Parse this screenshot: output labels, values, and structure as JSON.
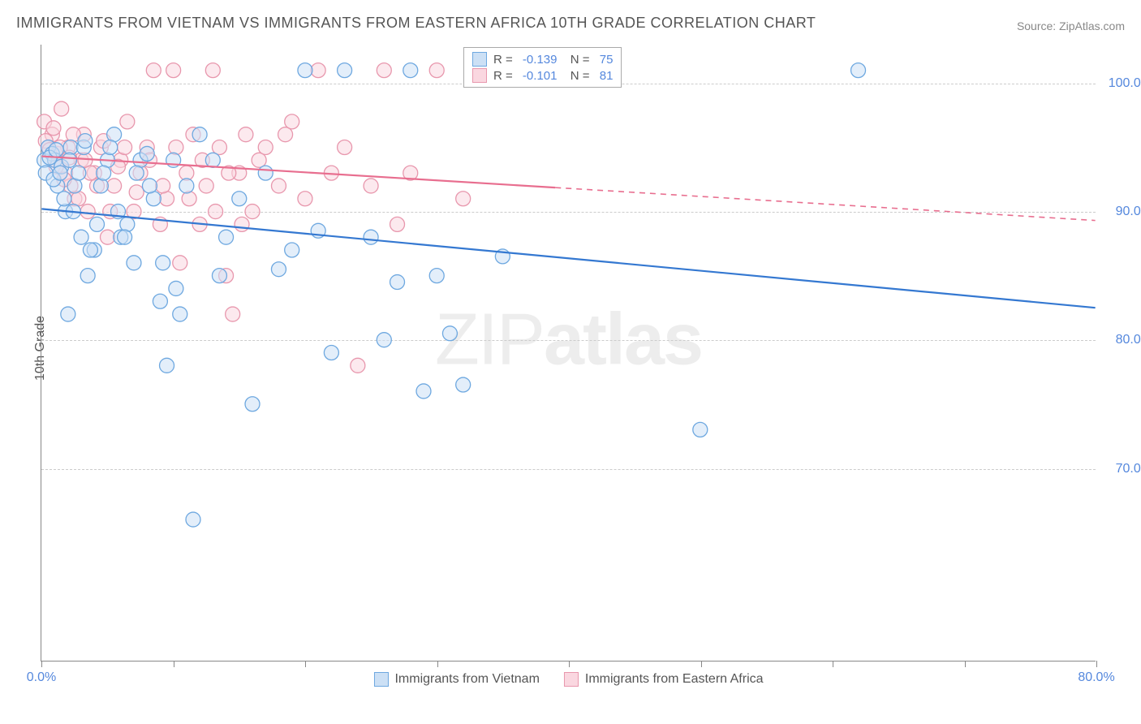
{
  "title": "IMMIGRANTS FROM VIETNAM VS IMMIGRANTS FROM EASTERN AFRICA 10TH GRADE CORRELATION CHART",
  "source_prefix": "Source: ",
  "source_link": "ZipAtlas.com",
  "ylabel": "10th Grade",
  "watermark_light": "ZIP",
  "watermark_bold": "atlas",
  "chart": {
    "type": "scatter",
    "xlim": [
      0,
      80
    ],
    "ylim": [
      55,
      103
    ],
    "yticks": [
      70,
      80,
      90,
      100
    ],
    "ytick_labels": [
      "70.0%",
      "80.0%",
      "90.0%",
      "100.0%"
    ],
    "xticks": [
      0,
      10,
      20,
      30,
      40,
      50,
      60,
      70,
      80
    ],
    "xtick_labels": [
      "0.0%",
      "",
      "",
      "",
      "",
      "",
      "",
      "",
      "80.0%"
    ],
    "grid_color": "#cccccc",
    "background_color": "#ffffff",
    "axis_color": "#888888",
    "marker_radius": 9,
    "marker_stroke_width": 1.3,
    "line_width": 2.2,
    "series": [
      {
        "name": "Immigrants from Vietnam",
        "fill": "#cce0f5",
        "stroke": "#6ea8e0",
        "line_color": "#3478d1",
        "R": "-0.139",
        "N": "75",
        "trend": {
          "x1": 0,
          "y1": 90.2,
          "x2": 80,
          "y2": 82.5,
          "dash_after_x": null
        },
        "points": [
          [
            0.2,
            94
          ],
          [
            0.5,
            95
          ],
          [
            0.8,
            94.5
          ],
          [
            1.0,
            94
          ],
          [
            1.2,
            92
          ],
          [
            1.5,
            93.5
          ],
          [
            1.8,
            90
          ],
          [
            2,
            82
          ],
          [
            2.2,
            95
          ],
          [
            2.5,
            92
          ],
          [
            3,
            88
          ],
          [
            3.2,
            95
          ],
          [
            3.5,
            85
          ],
          [
            4,
            87
          ],
          [
            4.5,
            92
          ],
          [
            5,
            94
          ],
          [
            5.5,
            96
          ],
          [
            6,
            88
          ],
          [
            6.5,
            89
          ],
          [
            7,
            86
          ],
          [
            7.5,
            94
          ],
          [
            8,
            94.5
          ],
          [
            8.5,
            91
          ],
          [
            9,
            83
          ],
          [
            9.5,
            78
          ],
          [
            10,
            94
          ],
          [
            10.5,
            82
          ],
          [
            11,
            92
          ],
          [
            11.5,
            66
          ],
          [
            12,
            96
          ],
          [
            13,
            94
          ],
          [
            13.5,
            85
          ],
          [
            14,
            88
          ],
          [
            15,
            91
          ],
          [
            16,
            75
          ],
          [
            17,
            93
          ],
          [
            18,
            85.5
          ],
          [
            19,
            87
          ],
          [
            20,
            101
          ],
          [
            21,
            88.5
          ],
          [
            22,
            79
          ],
          [
            23,
            101
          ],
          [
            25,
            88
          ],
          [
            26,
            80
          ],
          [
            27,
            84.5
          ],
          [
            28,
            101
          ],
          [
            29,
            76
          ],
          [
            30,
            85
          ],
          [
            31,
            80.5
          ],
          [
            32,
            76.5
          ],
          [
            33,
            101
          ],
          [
            35,
            86.5
          ],
          [
            40,
            101
          ],
          [
            50,
            73
          ],
          [
            62,
            101
          ],
          [
            0.3,
            93
          ],
          [
            0.6,
            94.2
          ],
          [
            0.9,
            92.5
          ],
          [
            1.1,
            94.8
          ],
          [
            1.4,
            93
          ],
          [
            1.7,
            91
          ],
          [
            2.1,
            94
          ],
          [
            2.4,
            90
          ],
          [
            2.8,
            93
          ],
          [
            3.3,
            95.5
          ],
          [
            3.7,
            87
          ],
          [
            4.2,
            89
          ],
          [
            4.7,
            93
          ],
          [
            5.2,
            95
          ],
          [
            5.8,
            90
          ],
          [
            6.3,
            88
          ],
          [
            7.2,
            93
          ],
          [
            8.2,
            92
          ],
          [
            9.2,
            86
          ],
          [
            10.2,
            84
          ]
        ]
      },
      {
        "name": "Immigrants from Eastern Africa",
        "fill": "#fad7e0",
        "stroke": "#e897ad",
        "line_color": "#e86e8f",
        "R": "-0.101",
        "N": "81",
        "trend": {
          "x1": 0,
          "y1": 94.3,
          "x2": 80,
          "y2": 89.3,
          "dash_after_x": 39
        },
        "points": [
          [
            0.2,
            97
          ],
          [
            0.5,
            95
          ],
          [
            0.8,
            96
          ],
          [
            1.0,
            94
          ],
          [
            1.2,
            94.5
          ],
          [
            1.5,
            98
          ],
          [
            1.8,
            93
          ],
          [
            2,
            95
          ],
          [
            2.2,
            92
          ],
          [
            2.5,
            91
          ],
          [
            3,
            94
          ],
          [
            3.2,
            96
          ],
          [
            3.5,
            90
          ],
          [
            4,
            93
          ],
          [
            4.5,
            95
          ],
          [
            5,
            88
          ],
          [
            5.5,
            92
          ],
          [
            6,
            94
          ],
          [
            6.5,
            97
          ],
          [
            7,
            90
          ],
          [
            7.5,
            93
          ],
          [
            8,
            95
          ],
          [
            8.5,
            101
          ],
          [
            9,
            89
          ],
          [
            9.5,
            91
          ],
          [
            10,
            101
          ],
          [
            10.5,
            86
          ],
          [
            11,
            93
          ],
          [
            11.5,
            96
          ],
          [
            12,
            89
          ],
          [
            12.5,
            92
          ],
          [
            13,
            101
          ],
          [
            13.5,
            95
          ],
          [
            14,
            85
          ],
          [
            14.5,
            82
          ],
          [
            15,
            93
          ],
          [
            15.5,
            96
          ],
          [
            16,
            90
          ],
          [
            17,
            95
          ],
          [
            18,
            92
          ],
          [
            19,
            97
          ],
          [
            20,
            91
          ],
          [
            21,
            101
          ],
          [
            22,
            93
          ],
          [
            23,
            95
          ],
          [
            24,
            78
          ],
          [
            25,
            92
          ],
          [
            26,
            101
          ],
          [
            27,
            89
          ],
          [
            28,
            93
          ],
          [
            30,
            101
          ],
          [
            32,
            91
          ],
          [
            38,
            101
          ],
          [
            40,
            101
          ],
          [
            0.3,
            95.5
          ],
          [
            0.6,
            94.8
          ],
          [
            0.9,
            96.5
          ],
          [
            1.1,
            93.5
          ],
          [
            1.4,
            95
          ],
          [
            1.7,
            92.5
          ],
          [
            2.1,
            94.2
          ],
          [
            2.4,
            96
          ],
          [
            2.8,
            91
          ],
          [
            3.3,
            94
          ],
          [
            3.7,
            93
          ],
          [
            4.2,
            92
          ],
          [
            4.7,
            95.5
          ],
          [
            5.2,
            90
          ],
          [
            5.8,
            93.5
          ],
          [
            6.3,
            95
          ],
          [
            7.2,
            91.5
          ],
          [
            8.2,
            94
          ],
          [
            9.2,
            92
          ],
          [
            10.2,
            95
          ],
          [
            11.2,
            91
          ],
          [
            12.2,
            94
          ],
          [
            13.2,
            90
          ],
          [
            14.2,
            93
          ],
          [
            15.2,
            89
          ],
          [
            16.5,
            94
          ],
          [
            18.5,
            96
          ]
        ]
      }
    ]
  },
  "legend_bottom": [
    {
      "label": "Immigrants from Vietnam",
      "fill": "#cce0f5",
      "stroke": "#6ea8e0"
    },
    {
      "label": "Immigrants from Eastern Africa",
      "fill": "#fad7e0",
      "stroke": "#e897ad"
    }
  ]
}
